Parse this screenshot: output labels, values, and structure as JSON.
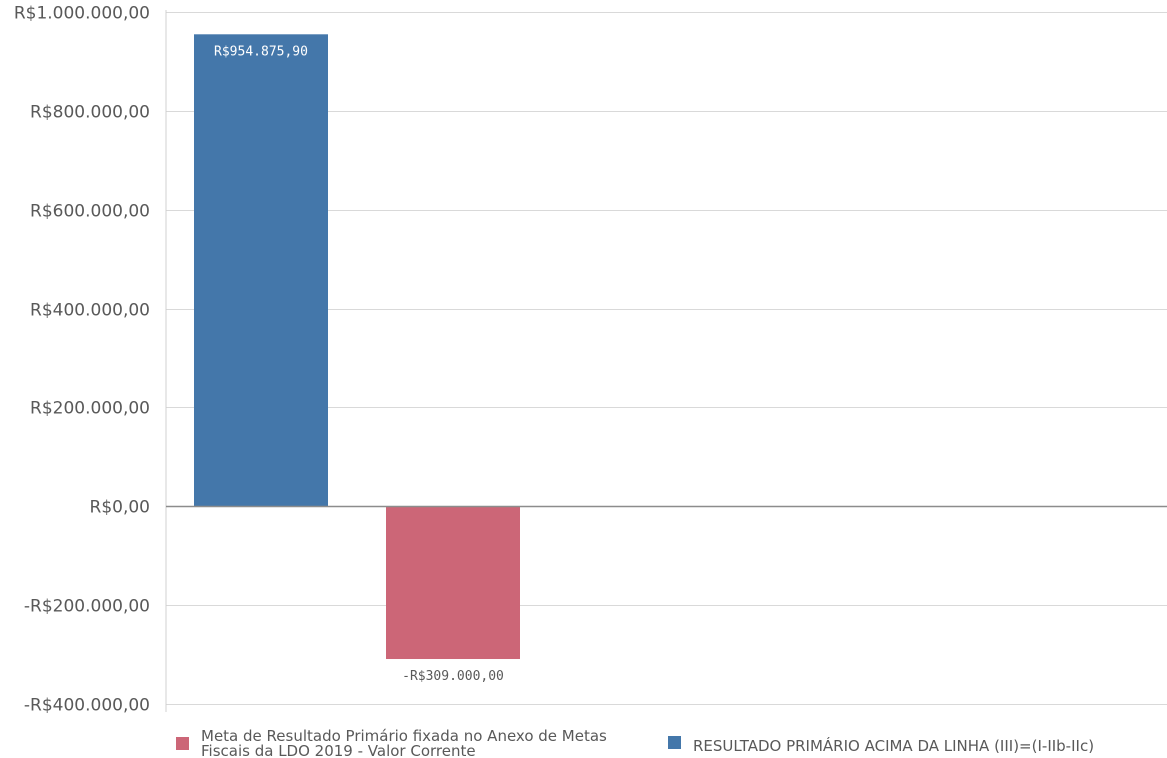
{
  "chart_data": {
    "type": "bar",
    "categories": [
      "RESULTADO PRIMÁRIO ACIMA DA LINHA (III)=(I-IIb-IIc)",
      "Meta de Resultado Primário fixada no Anexo de Metas Fiscais da LDO 2019 - Valor Corrente"
    ],
    "values": [
      954875.9,
      -309000.0
    ],
    "value_labels": [
      "R$954.875,90",
      "-R$309.000,00"
    ],
    "colors": [
      "#4477aa",
      "#cc6677"
    ],
    "ylim": [
      -400000,
      1000000
    ],
    "yticks": [
      -400000,
      -200000,
      0,
      200000,
      400000,
      600000,
      800000,
      1000000
    ],
    "ytick_labels": [
      "-R$400.000,00",
      "-R$200.000,00",
      "R$0,00",
      "R$200.000,00",
      "R$400.000,00",
      "R$600.000,00",
      "R$800.000,00",
      "R$1.000.000,00"
    ],
    "grid": true,
    "legend_position": "bottom",
    "legend": [
      {
        "lines": [
          "Meta de Resultado Primário fixada no Anexo de Metas",
          "Fiscais da LDO 2019 - Valor Corrente"
        ],
        "color": "#cc6677"
      },
      {
        "lines": [
          "RESULTADO PRIMÁRIO ACIMA DA LINHA (III)=(I-IIb-IIc)"
        ],
        "color": "#4477aa"
      }
    ]
  }
}
